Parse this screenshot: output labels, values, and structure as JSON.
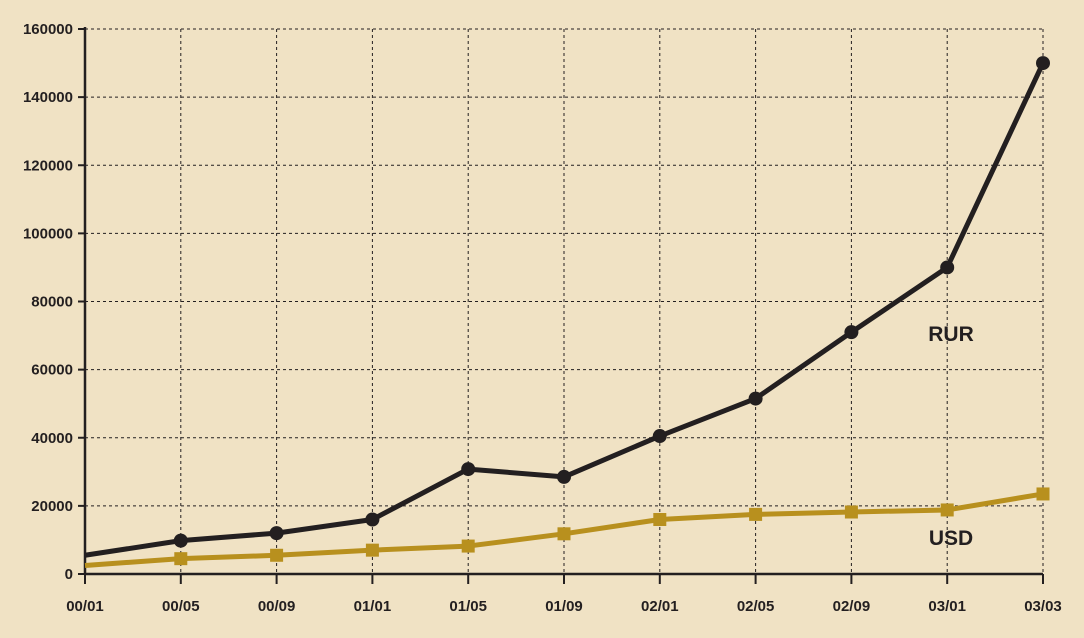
{
  "chart_data": {
    "type": "line",
    "title": "",
    "xlabel": "",
    "ylabel": "",
    "categories": [
      "00/01",
      "00/05",
      "00/09",
      "01/01",
      "01/05",
      "01/09",
      "02/01",
      "02/05",
      "02/09",
      "03/01",
      "03/03"
    ],
    "yticks": [
      0,
      20000,
      40000,
      60000,
      80000,
      100000,
      120000,
      140000,
      160000
    ],
    "ylim": [
      0,
      160000
    ],
    "grid": true,
    "legend": "inline labels",
    "series": [
      {
        "name": "RUR",
        "color": "#231f20",
        "marker": "circle",
        "values": [
          5500,
          9800,
          12000,
          16000,
          30800,
          28500,
          40500,
          51500,
          71000,
          90000,
          150000
        ]
      },
      {
        "name": "USD",
        "color": "#b8901e",
        "marker": "square",
        "values": [
          2500,
          4500,
          5500,
          7000,
          8200,
          11800,
          16000,
          17500,
          18200,
          18800,
          23500
        ]
      }
    ]
  }
}
